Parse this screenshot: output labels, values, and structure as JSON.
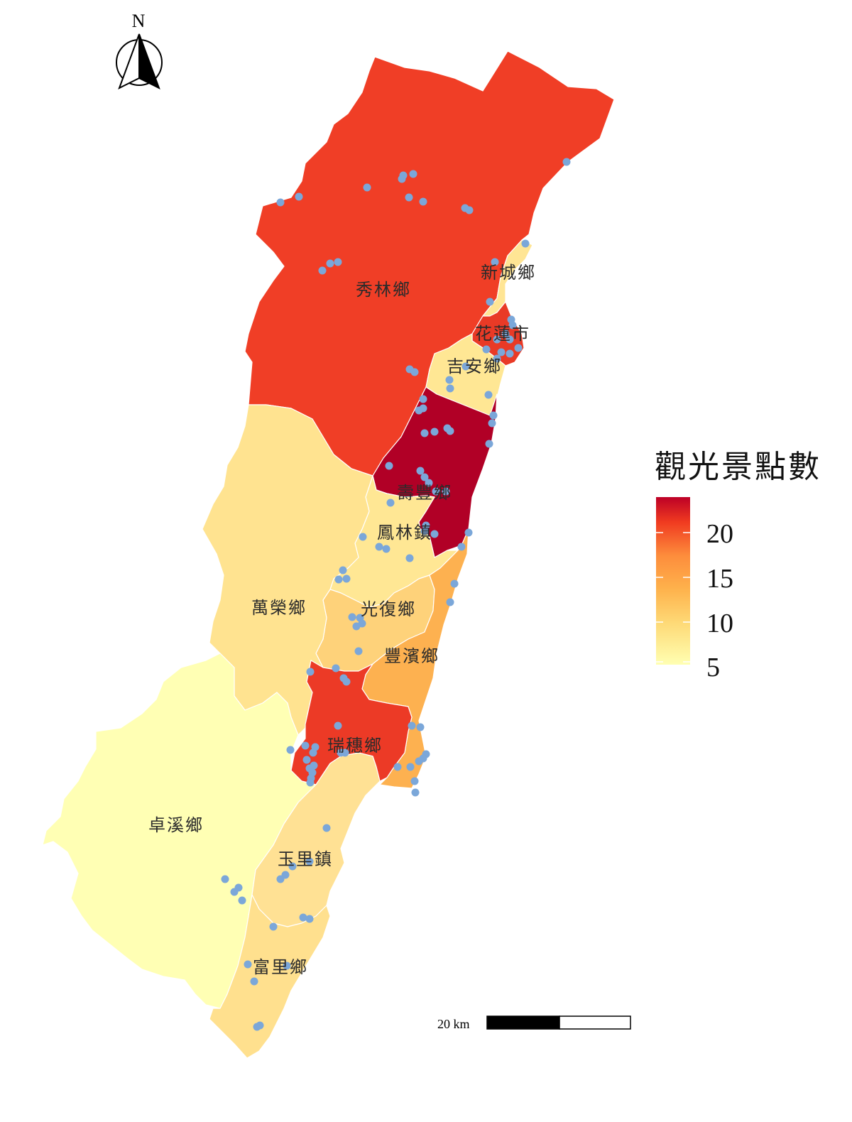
{
  "legend": {
    "title": "觀光景點數",
    "ticks": [
      "20",
      "15",
      "10",
      "5"
    ],
    "color_low": "#ffffb2",
    "color_mid1": "#fed976",
    "color_mid2": "#feb24c",
    "color_mid3": "#fd8d3c",
    "color_mid4": "#f03b20",
    "color_high": "#bd0026"
  },
  "north_arrow": {
    "label": "N"
  },
  "scale_bar": {
    "label": "20 km"
  },
  "poi_color": "#7ba7d9",
  "towns": [
    {
      "name": "秀林鄉",
      "fill": "#f03e26"
    },
    {
      "name": "新城鄉",
      "fill": "#ffe594"
    },
    {
      "name": "花蓮市",
      "fill": "#e93a26"
    },
    {
      "name": "吉安鄉",
      "fill": "#ffe794"
    },
    {
      "name": "壽豐鄉",
      "fill": "#b10026"
    },
    {
      "name": "鳳林鎮",
      "fill": "#ffe794"
    },
    {
      "name": "光復鄉",
      "fill": "#fed27a"
    },
    {
      "name": "萬榮鄉",
      "fill": "#ffe390"
    },
    {
      "name": "豐濱鄉",
      "fill": "#fdb150"
    },
    {
      "name": "瑞穗鄉",
      "fill": "#ec3a26"
    },
    {
      "name": "卓溪鄉",
      "fill": "#ffffb4"
    },
    {
      "name": "玉里鎮",
      "fill": "#ffe194"
    },
    {
      "name": "富里鄉",
      "fill": "#ffe08e"
    }
  ]
}
